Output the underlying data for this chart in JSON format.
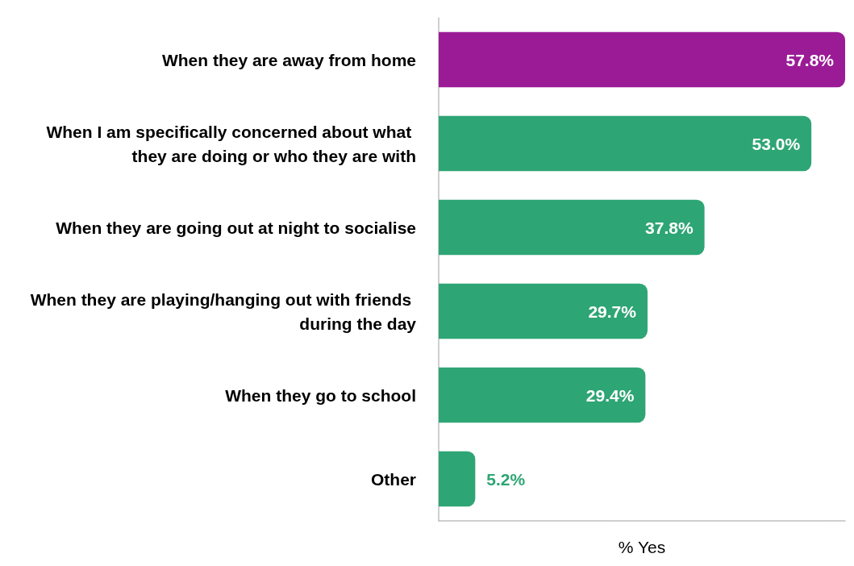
{
  "chart_data": {
    "type": "bar",
    "orientation": "horizontal",
    "xlabel": "% Yes",
    "categories": [
      "When they are away from home",
      "When I am specifically concerned about what they are doing or who they are with",
      "When they are going out at night to socialise",
      "When they are playing/hanging out with friends during the day",
      "When they go to school",
      "Other"
    ],
    "values": [
      57.8,
      53.0,
      37.8,
      29.7,
      29.4,
      5.2
    ],
    "colors": [
      "#9b1b96",
      "#2ea574",
      "#2ea574",
      "#2ea574",
      "#2ea574",
      "#2ea574"
    ],
    "value_labels": [
      "57.8%",
      "53.0%",
      "37.8%",
      "29.7%",
      "29.4%",
      "5.2%"
    ]
  }
}
